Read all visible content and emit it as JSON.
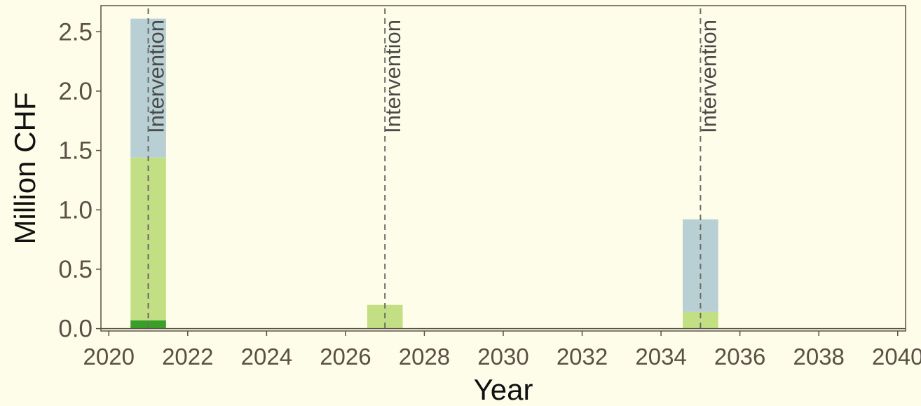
{
  "chart_data": {
    "type": "bar",
    "stacked": true,
    "xlabel": "Year",
    "ylabel": "Million CHF",
    "xlim": [
      2019.8,
      2040.2
    ],
    "ylim": [
      -0.02,
      2.72
    ],
    "x_ticks": [
      2020,
      2022,
      2024,
      2026,
      2028,
      2030,
      2032,
      2034,
      2036,
      2038,
      2040
    ],
    "x_tick_labels": [
      "2020",
      "2022",
      "2024",
      "2026",
      "2028",
      "2030",
      "2032",
      "2034",
      "2036",
      "2038",
      "2040"
    ],
    "y_ticks": [
      0.0,
      0.5,
      1.0,
      1.5,
      2.0,
      2.5
    ],
    "y_tick_labels": [
      "0.0",
      "0.5",
      "1.0",
      "1.5",
      "2.0",
      "2.5"
    ],
    "bar_width": 0.9,
    "x": [
      2021,
      2027,
      2035
    ],
    "series": [
      {
        "color": "#3a9f28",
        "values": [
          0.07,
          0.0,
          0.0
        ]
      },
      {
        "color": "#c3df84",
        "values": [
          1.37,
          0.2,
          0.14
        ]
      },
      {
        "color": "#b8cfd3",
        "values": [
          1.17,
          0.0,
          0.78
        ]
      }
    ],
    "interventions": [
      2021,
      2027,
      2035
    ],
    "intervention_label": "Intervention",
    "grid": false,
    "legend": "none",
    "colors": {
      "background": "#fefde9",
      "axis": "#5a5046",
      "tick_text": "#5a5046",
      "title_text": "#111111",
      "intervention_line": "#6b6b6b"
    }
  }
}
